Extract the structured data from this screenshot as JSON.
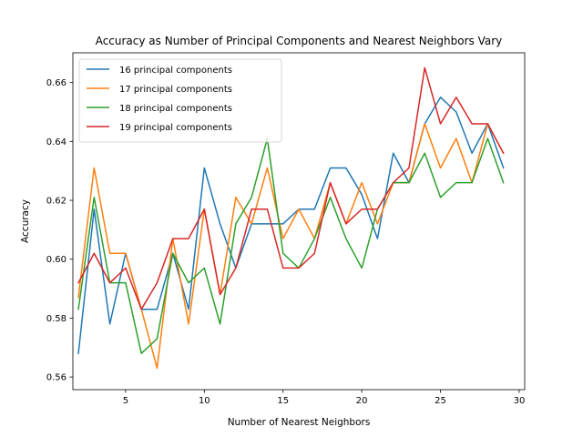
{
  "chart_data": {
    "type": "line",
    "title": "Accuracy as Number of Principal Components and Nearest Neighbors Vary",
    "xlabel": "Number of Nearest Neighbors",
    "ylabel": "Accuracy",
    "xlim": [
      1.65,
      30.35
    ],
    "ylim": [
      0.5557,
      0.6701
    ],
    "xticks": [
      5,
      10,
      15,
      20,
      25,
      30
    ],
    "yticks": [
      0.56,
      0.58,
      0.6,
      0.62,
      0.64,
      0.66
    ],
    "ytick_format": 2,
    "grid": false,
    "legend_position": "upper-left",
    "x": [
      2,
      3,
      4,
      5,
      6,
      7,
      8,
      9,
      10,
      11,
      12,
      13,
      14,
      15,
      16,
      17,
      18,
      19,
      20,
      21,
      22,
      23,
      24,
      25,
      26,
      27,
      28,
      29
    ],
    "series": [
      {
        "name": "16 principal components",
        "color": "#1f77b4",
        "values": [
          0.568,
          0.617,
          0.578,
          0.602,
          0.583,
          0.583,
          0.602,
          0.583,
          0.631,
          0.612,
          0.597,
          0.612,
          0.612,
          0.612,
          0.617,
          0.617,
          0.631,
          0.631,
          0.622,
          0.607,
          0.636,
          0.626,
          0.646,
          0.655,
          0.65,
          0.636,
          0.646,
          0.631
        ]
      },
      {
        "name": "17 principal components",
        "color": "#ff7f0e",
        "values": [
          0.587,
          0.631,
          0.602,
          0.602,
          0.583,
          0.563,
          0.607,
          0.578,
          0.617,
          0.588,
          0.621,
          0.612,
          0.631,
          0.607,
          0.617,
          0.607,
          0.626,
          0.612,
          0.626,
          0.612,
          0.626,
          0.626,
          0.646,
          0.631,
          0.641,
          0.626,
          0.646,
          0.636
        ]
      },
      {
        "name": "18 principal components",
        "color": "#2ca02c",
        "values": [
          0.583,
          0.621,
          0.592,
          0.592,
          0.568,
          0.573,
          0.602,
          0.592,
          0.597,
          0.578,
          0.612,
          0.621,
          0.641,
          0.602,
          0.597,
          0.607,
          0.621,
          0.607,
          0.597,
          0.617,
          0.626,
          0.626,
          0.636,
          0.621,
          0.626,
          0.626,
          0.641,
          0.626
        ]
      },
      {
        "name": "19 principal components",
        "color": "#d62728",
        "values": [
          0.592,
          0.602,
          0.592,
          0.597,
          0.583,
          0.592,
          0.607,
          0.607,
          0.617,
          0.588,
          0.597,
          0.617,
          0.617,
          0.597,
          0.597,
          0.602,
          0.626,
          0.612,
          0.617,
          0.617,
          0.626,
          0.631,
          0.665,
          0.646,
          0.655,
          0.646,
          0.646,
          0.636
        ]
      }
    ]
  }
}
